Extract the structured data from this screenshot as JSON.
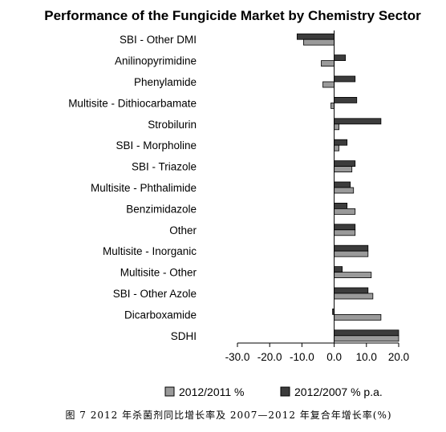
{
  "chart_data": {
    "type": "bar",
    "orientation": "horizontal",
    "title": "Performance of the Fungicide Market by Chemistry Sector",
    "categories": [
      "SBI - Other DMI",
      "Anilinopyrimidine",
      "Phenylamide",
      "Multisite - Dithiocarbamate",
      "Strobilurin",
      "SBI - Morpholine",
      "SBI - Triazole",
      "Multisite - Phthalimide",
      "Benzimidazole",
      "Other",
      "Multisite - Inorganic",
      "Multisite - Other",
      "SBI - Other Azole",
      "Dicarboxamide",
      "SDHI"
    ],
    "series": [
      {
        "name": "2012/2011 %",
        "color": "#9a9a9a",
        "values": [
          -9.5,
          -4.0,
          -3.5,
          -1.0,
          1.5,
          1.5,
          5.5,
          6.0,
          6.5,
          6.5,
          10.5,
          11.5,
          12.0,
          14.5,
          20.0
        ]
      },
      {
        "name": "2012/2007 % p.a.",
        "color": "#3c3c3c",
        "values": [
          -11.5,
          3.5,
          6.5,
          7.0,
          14.5,
          4.0,
          6.5,
          5.0,
          4.0,
          6.5,
          10.5,
          2.5,
          10.5,
          -0.5,
          20.0
        ]
      }
    ],
    "xlim": [
      -30,
      20
    ],
    "xticks": [
      "-30.0",
      "-20.0",
      "-10.0",
      "0.0",
      "10.0",
      "20.0"
    ],
    "xtick_values": [
      -30,
      -20,
      -10,
      0,
      10,
      20
    ],
    "legend_position": "bottom",
    "grid": false
  },
  "caption": "图 7   2012 年杀菌剂同比增长率及 2007—2012 年复合年增长率(%)"
}
